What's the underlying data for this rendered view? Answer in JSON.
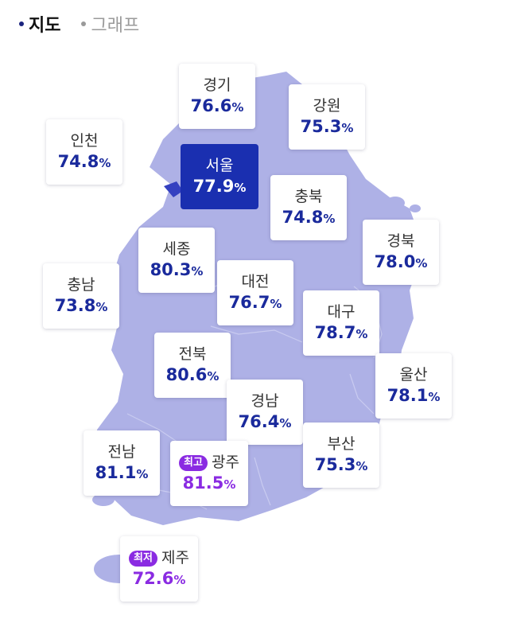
{
  "tabs": [
    {
      "label": "지도",
      "active": true
    },
    {
      "label": "그래프",
      "active": false
    }
  ],
  "colors": {
    "map_fill": "#aeb1e6",
    "accent": "#1a2fb0",
    "value_text": "#1a2a9c",
    "badge": "#8a2be2"
  },
  "regions": {
    "gyeonggi": {
      "name": "경기",
      "value": "76.6",
      "unit": "%"
    },
    "gangwon": {
      "name": "강원",
      "value": "75.3",
      "unit": "%"
    },
    "incheon": {
      "name": "인천",
      "value": "74.8",
      "unit": "%"
    },
    "seoul": {
      "name": "서울",
      "value": "77.9",
      "unit": "%"
    },
    "chungbuk": {
      "name": "충북",
      "value": "74.8",
      "unit": "%"
    },
    "gyeongbuk": {
      "name": "경북",
      "value": "78.0",
      "unit": "%"
    },
    "sejong": {
      "name": "세종",
      "value": "80.3",
      "unit": "%"
    },
    "chungnam": {
      "name": "충남",
      "value": "73.8",
      "unit": "%"
    },
    "daejeon": {
      "name": "대전",
      "value": "76.7",
      "unit": "%"
    },
    "daegu": {
      "name": "대구",
      "value": "78.7",
      "unit": "%"
    },
    "jeonbuk": {
      "name": "전북",
      "value": "80.6",
      "unit": "%"
    },
    "ulsan": {
      "name": "울산",
      "value": "78.1",
      "unit": "%"
    },
    "gyeongnam": {
      "name": "경남",
      "value": "76.4",
      "unit": "%"
    },
    "jeonnam": {
      "name": "전남",
      "value": "81.1",
      "unit": "%"
    },
    "gwangju": {
      "name": "광주",
      "value": "81.5",
      "unit": "%",
      "badge": "최고"
    },
    "busan": {
      "name": "부산",
      "value": "75.3",
      "unit": "%"
    },
    "jeju": {
      "name": "제주",
      "value": "72.6",
      "unit": "%",
      "badge": "최저"
    }
  }
}
